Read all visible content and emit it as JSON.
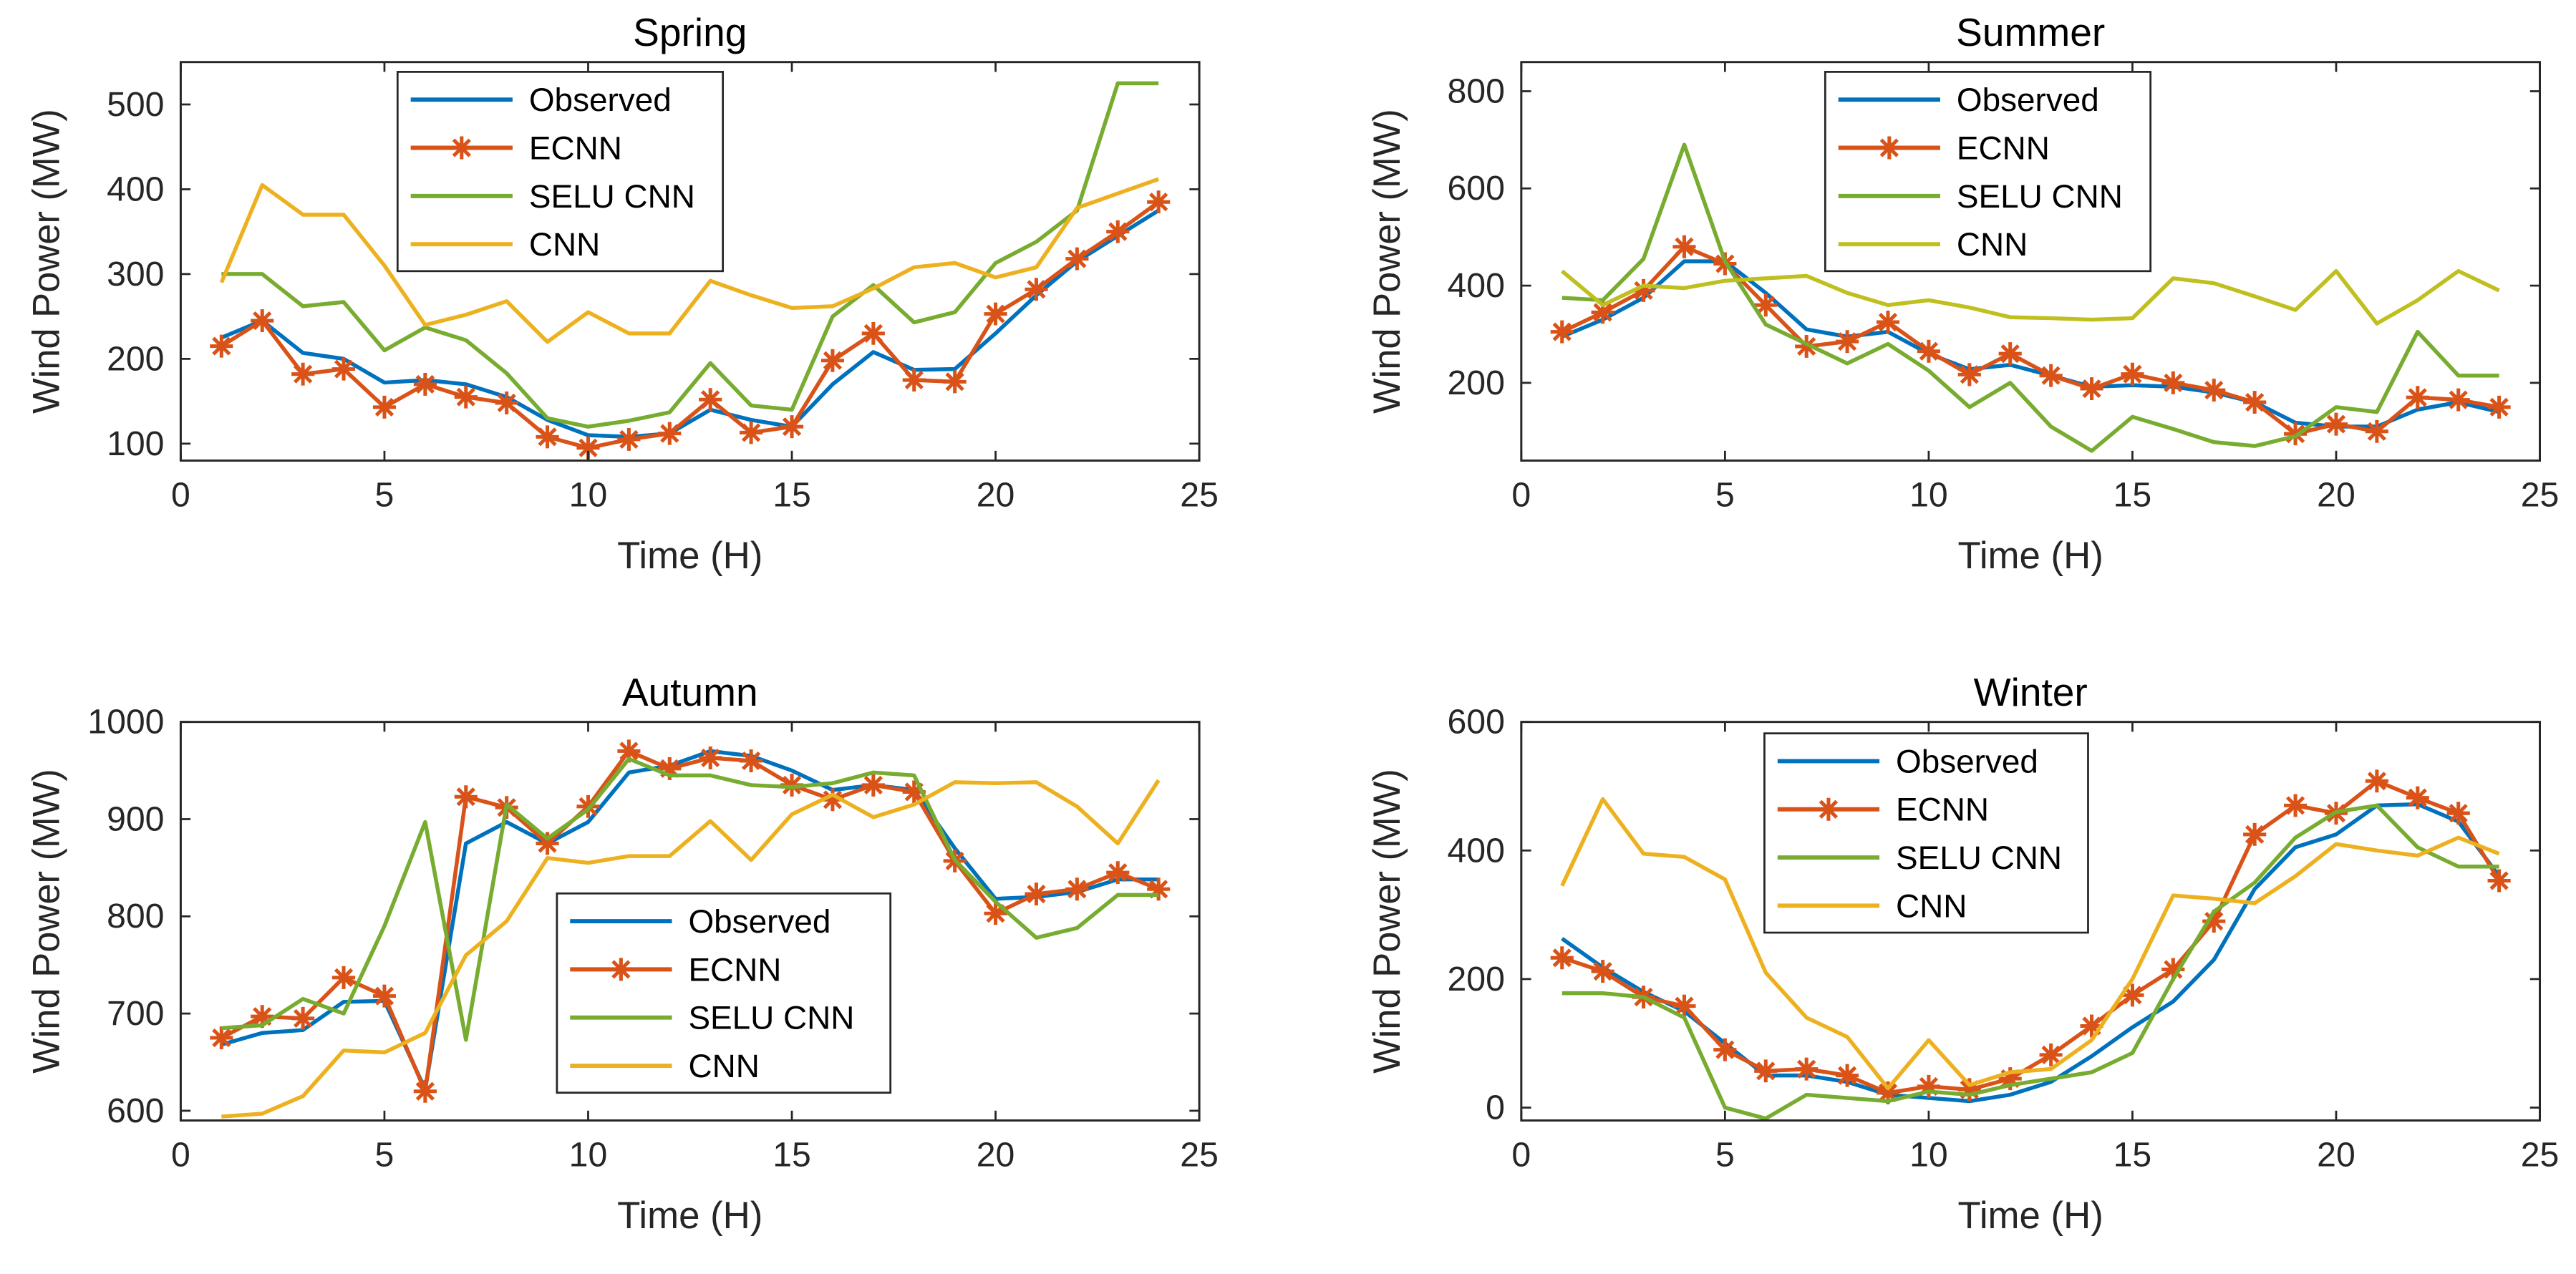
{
  "colors": {
    "Observed": "#0072BD",
    "ECNN": "#D95319",
    "SELU CNN": "#77AC30",
    "CNN_yellow": "#EDB120",
    "CNN_olive": "#BFBF1F"
  },
  "chart_data": [
    {
      "type": "line",
      "title": "Spring",
      "xlabel": "Time (H)",
      "ylabel": "Wind Power (MW)",
      "xlim": [
        0,
        25
      ],
      "ylim": [
        80,
        550
      ],
      "xticks": [
        0,
        5,
        10,
        15,
        20,
        25
      ],
      "yticks": [
        100,
        200,
        300,
        400,
        500
      ],
      "legend": "top-center-left",
      "x": [
        1,
        2,
        3,
        4,
        5,
        6,
        7,
        8,
        9,
        10,
        11,
        12,
        13,
        14,
        15,
        16,
        17,
        18,
        19,
        20,
        21,
        22,
        23,
        24
      ],
      "series": [
        {
          "name": "Observed",
          "color_key": "Observed",
          "marker": "none",
          "values": [
            225,
            245,
            207,
            200,
            172,
            175,
            170,
            155,
            128,
            110,
            108,
            112,
            140,
            128,
            120,
            170,
            208,
            187,
            188,
            230,
            275,
            315,
            345,
            375
          ]
        },
        {
          "name": "ECNN",
          "color_key": "ECNN",
          "marker": "star",
          "values": [
            215,
            245,
            182,
            188,
            143,
            170,
            155,
            148,
            108,
            95,
            105,
            112,
            152,
            113,
            120,
            198,
            230,
            175,
            173,
            253,
            282,
            318,
            350,
            385
          ]
        },
        {
          "name": "SELU CNN",
          "color_key": "SELU CNN",
          "marker": "none",
          "values": [
            300,
            300,
            262,
            267,
            210,
            237,
            222,
            183,
            130,
            120,
            127,
            137,
            195,
            145,
            140,
            250,
            287,
            243,
            255,
            313,
            338,
            375,
            525,
            525
          ]
        },
        {
          "name": "CNN",
          "color_key": "CNN_yellow",
          "marker": "none",
          "values": [
            290,
            405,
            370,
            370,
            310,
            240,
            252,
            268,
            220,
            255,
            230,
            230,
            292,
            275,
            260,
            262,
            283,
            308,
            313,
            296,
            308,
            378,
            395,
            412
          ]
        }
      ]
    },
    {
      "type": "line",
      "title": "Summer",
      "xlabel": "Time (H)",
      "ylabel": "Wind Power (MW)",
      "xlim": [
        0,
        25
      ],
      "ylim": [
        40,
        860
      ],
      "xticks": [
        0,
        5,
        10,
        15,
        20,
        25
      ],
      "yticks": [
        200,
        400,
        600,
        800
      ],
      "legend": "top-center-left",
      "x": [
        1,
        2,
        3,
        4,
        5,
        6,
        7,
        8,
        9,
        10,
        11,
        12,
        13,
        14,
        15,
        16,
        17,
        18,
        19,
        20,
        21,
        22,
        23,
        24
      ],
      "series": [
        {
          "name": "Observed",
          "color_key": "Observed",
          "marker": "none",
          "values": [
            295,
            330,
            375,
            450,
            450,
            385,
            310,
            295,
            305,
            260,
            228,
            237,
            215,
            192,
            195,
            192,
            180,
            160,
            118,
            110,
            110,
            145,
            160,
            140
          ]
        },
        {
          "name": "ECNN",
          "color_key": "ECNN",
          "marker": "star",
          "values": [
            305,
            345,
            390,
            480,
            445,
            360,
            275,
            285,
            325,
            265,
            217,
            260,
            215,
            188,
            218,
            200,
            185,
            160,
            95,
            115,
            100,
            170,
            165,
            150
          ]
        },
        {
          "name": "SELU CNN",
          "color_key": "SELU CNN",
          "marker": "none",
          "values": [
            375,
            370,
            455,
            690,
            450,
            320,
            280,
            240,
            280,
            225,
            150,
            200,
            110,
            60,
            130,
            105,
            78,
            70,
            90,
            150,
            140,
            305,
            215,
            215
          ]
        },
        {
          "name": "CNN",
          "color_key": "CNN_olive",
          "marker": "none",
          "values": [
            430,
            360,
            400,
            395,
            410,
            415,
            420,
            385,
            360,
            370,
            355,
            335,
            333,
            330,
            333,
            415,
            405,
            378,
            350,
            430,
            322,
            370,
            430,
            390
          ]
        }
      ]
    },
    {
      "type": "line",
      "title": "Autumn",
      "xlabel": "Time (H)",
      "ylabel": "Wind Power (MW)",
      "xlim": [
        0,
        25
      ],
      "ylim": [
        590,
        1000
      ],
      "xticks": [
        0,
        5,
        10,
        15,
        20,
        25
      ],
      "yticks": [
        600,
        700,
        800,
        900,
        1000
      ],
      "legend": "bottom-center",
      "x": [
        1,
        2,
        3,
        4,
        5,
        6,
        7,
        8,
        9,
        10,
        11,
        12,
        13,
        14,
        15,
        16,
        17,
        18,
        19,
        20,
        21,
        22,
        23,
        24
      ],
      "series": [
        {
          "name": "Observed",
          "color_key": "Observed",
          "marker": "none",
          "values": [
            668,
            680,
            683,
            712,
            713,
            622,
            875,
            897,
            875,
            897,
            948,
            955,
            970,
            965,
            950,
            930,
            935,
            930,
            870,
            818,
            820,
            825,
            838,
            838
          ]
        },
        {
          "name": "ECNN",
          "color_key": "ECNN",
          "marker": "star",
          "values": [
            675,
            697,
            695,
            737,
            718,
            620,
            923,
            912,
            875,
            913,
            970,
            952,
            963,
            960,
            935,
            920,
            935,
            928,
            857,
            803,
            823,
            828,
            845,
            828
          ]
        },
        {
          "name": "SELU CNN",
          "color_key": "SELU CNN",
          "marker": "none",
          "values": [
            685,
            688,
            715,
            700,
            790,
            897,
            673,
            915,
            880,
            910,
            962,
            945,
            945,
            935,
            933,
            937,
            948,
            945,
            858,
            815,
            778,
            788,
            822,
            822
          ]
        },
        {
          "name": "CNN",
          "color_key": "CNN_yellow",
          "marker": "none",
          "values": [
            594,
            597,
            615,
            662,
            660,
            680,
            760,
            795,
            860,
            855,
            862,
            862,
            898,
            858,
            905,
            925,
            902,
            915,
            938,
            937,
            938,
            913,
            875,
            940
          ]
        }
      ]
    },
    {
      "type": "line",
      "title": "Winter",
      "xlabel": "Time (H)",
      "ylabel": "Wind Power (MW)",
      "xlim": [
        0,
        25
      ],
      "ylim": [
        -20,
        600
      ],
      "xticks": [
        0,
        5,
        10,
        15,
        20,
        25
      ],
      "yticks": [
        0,
        200,
        400,
        600
      ],
      "legend": "top-left",
      "x": [
        1,
        2,
        3,
        4,
        5,
        6,
        7,
        8,
        9,
        10,
        11,
        12,
        13,
        14,
        15,
        16,
        17,
        18,
        19,
        20,
        21,
        22,
        23,
        24
      ],
      "series": [
        {
          "name": "Observed",
          "color_key": "Observed",
          "marker": "none",
          "values": [
            263,
            218,
            180,
            150,
            100,
            50,
            50,
            40,
            20,
            15,
            10,
            20,
            40,
            80,
            125,
            165,
            230,
            340,
            405,
            425,
            470,
            472,
            445,
            360
          ]
        },
        {
          "name": "ECNN",
          "color_key": "ECNN",
          "marker": "star",
          "values": [
            233,
            212,
            172,
            158,
            90,
            57,
            60,
            50,
            23,
            33,
            28,
            45,
            82,
            127,
            175,
            215,
            290,
            425,
            470,
            458,
            508,
            482,
            458,
            353
          ]
        },
        {
          "name": "SELU CNN",
          "color_key": "SELU CNN",
          "marker": "none",
          "values": [
            178,
            178,
            172,
            140,
            0,
            -17,
            20,
            15,
            10,
            25,
            20,
            35,
            45,
            55,
            85,
            200,
            305,
            350,
            420,
            460,
            470,
            405,
            375,
            375
          ]
        },
        {
          "name": "CNN",
          "color_key": "CNN_yellow",
          "marker": "none",
          "values": [
            345,
            480,
            395,
            390,
            355,
            210,
            140,
            110,
            30,
            105,
            35,
            55,
            60,
            105,
            200,
            330,
            325,
            318,
            360,
            410,
            400,
            392,
            420,
            395
          ]
        }
      ]
    }
  ]
}
